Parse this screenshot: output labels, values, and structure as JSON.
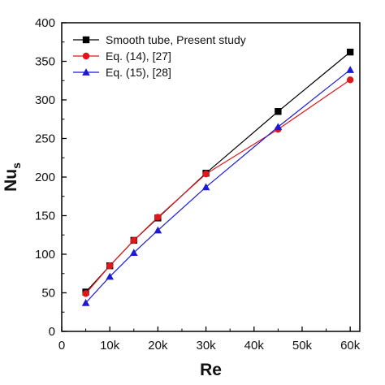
{
  "chart_data": {
    "type": "line",
    "xlabel": "Re",
    "ylabel": "Nu",
    "ylabel_sub": "s",
    "xlim": [
      0,
      62000
    ],
    "ylim": [
      0,
      400
    ],
    "x_ticks": [
      0,
      10000,
      20000,
      30000,
      40000,
      50000,
      60000
    ],
    "x_tick_labels": [
      "0",
      "10k",
      "20k",
      "30k",
      "40k",
      "50k",
      "60k"
    ],
    "y_ticks": [
      0,
      50,
      100,
      150,
      200,
      250,
      300,
      350,
      400
    ],
    "y_tick_labels": [
      "0",
      "50",
      "100",
      "150",
      "200",
      "250",
      "300",
      "350",
      "400"
    ],
    "grid": false,
    "legend_position": "top-left",
    "series": [
      {
        "name": "Smooth tube, Present study",
        "color": "#000000",
        "marker": "square",
        "x": [
          5000,
          10000,
          15000,
          20000,
          30000,
          45000,
          60000
        ],
        "y": [
          51,
          85,
          118,
          147,
          205,
          285,
          362
        ]
      },
      {
        "name": "Eq. (14), [27]",
        "color": "#e0161b",
        "marker": "circle",
        "x": [
          5000,
          10000,
          15000,
          20000,
          30000,
          45000,
          60000
        ],
        "y": [
          49,
          85,
          118,
          148,
          204,
          262,
          326
        ]
      },
      {
        "name": "Eq. (15), [28]",
        "color": "#1a1ad6",
        "marker": "triangle",
        "x": [
          5000,
          10000,
          15000,
          20000,
          30000,
          45000,
          60000
        ],
        "y": [
          37,
          71,
          102,
          131,
          187,
          265,
          339
        ]
      }
    ]
  }
}
